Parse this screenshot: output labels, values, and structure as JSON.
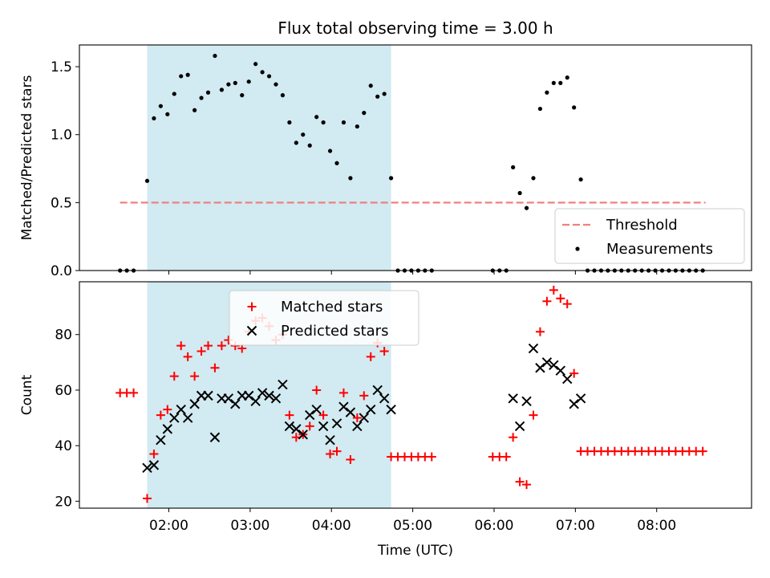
{
  "chart_data": {
    "title": "Flux total observing time = 3.00 h",
    "xlabel": "Time (UTC)",
    "x_ticks": [
      "02:00",
      "03:00",
      "04:00",
      "05:00",
      "06:00",
      "07:00",
      "08:00"
    ],
    "shaded_interval": [
      "01:44",
      "04:44"
    ],
    "shade_color": "#add8e6",
    "panels": [
      {
        "type": "scatter",
        "ylabel": "Matched/Predicted stars",
        "ylim": [
          0,
          1.66
        ],
        "y_ticks": [
          "0.0",
          "0.5",
          "1.0",
          "1.5"
        ],
        "legend_position": "lower-right",
        "threshold": {
          "name": "Threshold",
          "value": 0.5,
          "x_range": [
            "01:24",
            "08:36"
          ],
          "color": "#f08080"
        },
        "series": [
          {
            "name": "Measurements",
            "marker": "dot",
            "color": "#000000",
            "points": [
              [
                "01:24",
                0
              ],
              [
                "01:29",
                0
              ],
              [
                "01:34",
                0
              ],
              [
                "01:44",
                0.66
              ],
              [
                "01:49",
                1.12
              ],
              [
                "01:54",
                1.21
              ],
              [
                "01:59",
                1.15
              ],
              [
                "02:04",
                1.3
              ],
              [
                "02:09",
                1.43
              ],
              [
                "02:14",
                1.44
              ],
              [
                "02:19",
                1.18
              ],
              [
                "02:24",
                1.27
              ],
              [
                "02:29",
                1.31
              ],
              [
                "02:34",
                1.58
              ],
              [
                "02:39",
                1.33
              ],
              [
                "02:44",
                1.37
              ],
              [
                "02:49",
                1.38
              ],
              [
                "02:54",
                1.29
              ],
              [
                "02:59",
                1.39
              ],
              [
                "03:04",
                1.52
              ],
              [
                "03:09",
                1.46
              ],
              [
                "03:14",
                1.43
              ],
              [
                "03:19",
                1.37
              ],
              [
                "03:24",
                1.29
              ],
              [
                "03:29",
                1.09
              ],
              [
                "03:34",
                0.94
              ],
              [
                "03:39",
                1.0
              ],
              [
                "03:44",
                0.92
              ],
              [
                "03:49",
                1.13
              ],
              [
                "03:54",
                1.09
              ],
              [
                "03:59",
                0.88
              ],
              [
                "04:04",
                0.79
              ],
              [
                "04:09",
                1.09
              ],
              [
                "04:14",
                0.68
              ],
              [
                "04:19",
                1.06
              ],
              [
                "04:24",
                1.16
              ],
              [
                "04:29",
                1.36
              ],
              [
                "04:34",
                1.28
              ],
              [
                "04:39",
                1.3
              ],
              [
                "04:44",
                0.68
              ],
              [
                "04:49",
                0
              ],
              [
                "04:54",
                0
              ],
              [
                "04:59",
                0
              ],
              [
                "05:04",
                0
              ],
              [
                "05:09",
                0
              ],
              [
                "05:14",
                0
              ],
              [
                "05:59",
                0
              ],
              [
                "06:04",
                0
              ],
              [
                "06:09",
                0
              ],
              [
                "06:14",
                0.76
              ],
              [
                "06:19",
                0.57
              ],
              [
                "06:24",
                0.46
              ],
              [
                "06:29",
                0.68
              ],
              [
                "06:34",
                1.19
              ],
              [
                "06:39",
                1.31
              ],
              [
                "06:44",
                1.38
              ],
              [
                "06:49",
                1.38
              ],
              [
                "06:54",
                1.42
              ],
              [
                "06:59",
                1.2
              ],
              [
                "07:04",
                0.67
              ],
              [
                "07:09",
                0
              ],
              [
                "07:14",
                0
              ],
              [
                "07:19",
                0
              ],
              [
                "07:24",
                0
              ],
              [
                "07:29",
                0
              ],
              [
                "07:34",
                0
              ],
              [
                "07:39",
                0
              ],
              [
                "07:44",
                0
              ],
              [
                "07:49",
                0
              ],
              [
                "07:54",
                0
              ],
              [
                "07:59",
                0
              ],
              [
                "08:04",
                0
              ],
              [
                "08:09",
                0
              ],
              [
                "08:14",
                0
              ],
              [
                "08:19",
                0
              ],
              [
                "08:24",
                0
              ],
              [
                "08:29",
                0
              ],
              [
                "08:34",
                0
              ]
            ]
          }
        ]
      },
      {
        "type": "scatter",
        "ylabel": "Count",
        "ylim": [
          17.5,
          99
        ],
        "y_ticks": [
          "20",
          "40",
          "60",
          "80"
        ],
        "legend_position": "upper-center",
        "series": [
          {
            "name": "Matched stars",
            "marker": "plus",
            "color": "#ff0000",
            "points": [
              [
                "01:24",
                59
              ],
              [
                "01:29",
                59
              ],
              [
                "01:34",
                59
              ],
              [
                "01:44",
                21
              ],
              [
                "01:49",
                37
              ],
              [
                "01:54",
                51
              ],
              [
                "01:59",
                53
              ],
              [
                "02:04",
                65
              ],
              [
                "02:09",
                76
              ],
              [
                "02:14",
                72
              ],
              [
                "02:19",
                65
              ],
              [
                "02:24",
                74
              ],
              [
                "02:29",
                76
              ],
              [
                "02:34",
                68
              ],
              [
                "02:39",
                76
              ],
              [
                "02:44",
                78
              ],
              [
                "02:49",
                76
              ],
              [
                "02:54",
                75
              ],
              [
                "02:59",
                81
              ],
              [
                "03:04",
                85
              ],
              [
                "03:09",
                86
              ],
              [
                "03:14",
                83
              ],
              [
                "03:19",
                78
              ],
              [
                "03:24",
                80
              ],
              [
                "03:29",
                51
              ],
              [
                "03:34",
                43
              ],
              [
                "03:39",
                44
              ],
              [
                "03:44",
                47
              ],
              [
                "03:49",
                60
              ],
              [
                "03:54",
                51
              ],
              [
                "03:59",
                37
              ],
              [
                "04:04",
                38
              ],
              [
                "04:09",
                59
              ],
              [
                "04:14",
                35
              ],
              [
                "04:19",
                50
              ],
              [
                "04:24",
                58
              ],
              [
                "04:29",
                72
              ],
              [
                "04:34",
                77
              ],
              [
                "04:39",
                74
              ],
              [
                "04:44",
                36
              ],
              [
                "04:49",
                36
              ],
              [
                "04:54",
                36
              ],
              [
                "04:59",
                36
              ],
              [
                "05:04",
                36
              ],
              [
                "05:09",
                36
              ],
              [
                "05:14",
                36
              ],
              [
                "05:59",
                36
              ],
              [
                "06:04",
                36
              ],
              [
                "06:09",
                36
              ],
              [
                "06:14",
                43
              ],
              [
                "06:19",
                27
              ],
              [
                "06:24",
                26
              ],
              [
                "06:29",
                51
              ],
              [
                "06:34",
                81
              ],
              [
                "06:39",
                92
              ],
              [
                "06:44",
                96
              ],
              [
                "06:49",
                93
              ],
              [
                "06:54",
                91
              ],
              [
                "06:59",
                66
              ],
              [
                "07:04",
                38
              ],
              [
                "07:09",
                38
              ],
              [
                "07:14",
                38
              ],
              [
                "07:19",
                38
              ],
              [
                "07:24",
                38
              ],
              [
                "07:29",
                38
              ],
              [
                "07:34",
                38
              ],
              [
                "07:39",
                38
              ],
              [
                "07:44",
                38
              ],
              [
                "07:49",
                38
              ],
              [
                "07:54",
                38
              ],
              [
                "07:59",
                38
              ],
              [
                "08:04",
                38
              ],
              [
                "08:09",
                38
              ],
              [
                "08:14",
                38
              ],
              [
                "08:19",
                38
              ],
              [
                "08:24",
                38
              ],
              [
                "08:29",
                38
              ],
              [
                "08:34",
                38
              ]
            ]
          },
          {
            "name": "Predicted stars",
            "marker": "x",
            "color": "#000000",
            "points": [
              [
                "01:44",
                32
              ],
              [
                "01:49",
                33
              ],
              [
                "01:54",
                42
              ],
              [
                "01:59",
                46
              ],
              [
                "02:04",
                50
              ],
              [
                "02:09",
                53
              ],
              [
                "02:14",
                50
              ],
              [
                "02:19",
                55
              ],
              [
                "02:24",
                58
              ],
              [
                "02:29",
                58
              ],
              [
                "02:34",
                43
              ],
              [
                "02:39",
                57
              ],
              [
                "02:44",
                57
              ],
              [
                "02:49",
                55
              ],
              [
                "02:54",
                58
              ],
              [
                "02:59",
                58
              ],
              [
                "03:04",
                56
              ],
              [
                "03:09",
                59
              ],
              [
                "03:14",
                58
              ],
              [
                "03:19",
                57
              ],
              [
                "03:24",
                62
              ],
              [
                "03:29",
                47
              ],
              [
                "03:34",
                46
              ],
              [
                "03:39",
                44
              ],
              [
                "03:44",
                51
              ],
              [
                "03:49",
                53
              ],
              [
                "03:54",
                47
              ],
              [
                "03:59",
                42
              ],
              [
                "04:04",
                48
              ],
              [
                "04:09",
                54
              ],
              [
                "04:14",
                52
              ],
              [
                "04:19",
                47
              ],
              [
                "04:24",
                50
              ],
              [
                "04:29",
                53
              ],
              [
                "04:34",
                60
              ],
              [
                "04:39",
                57
              ],
              [
                "04:44",
                53
              ],
              [
                "06:14",
                57
              ],
              [
                "06:19",
                47
              ],
              [
                "06:24",
                56
              ],
              [
                "06:29",
                75
              ],
              [
                "06:34",
                68
              ],
              [
                "06:39",
                70
              ],
              [
                "06:44",
                69
              ],
              [
                "06:49",
                67
              ],
              [
                "06:54",
                64
              ],
              [
                "06:59",
                55
              ],
              [
                "07:04",
                57
              ]
            ]
          }
        ]
      }
    ]
  }
}
